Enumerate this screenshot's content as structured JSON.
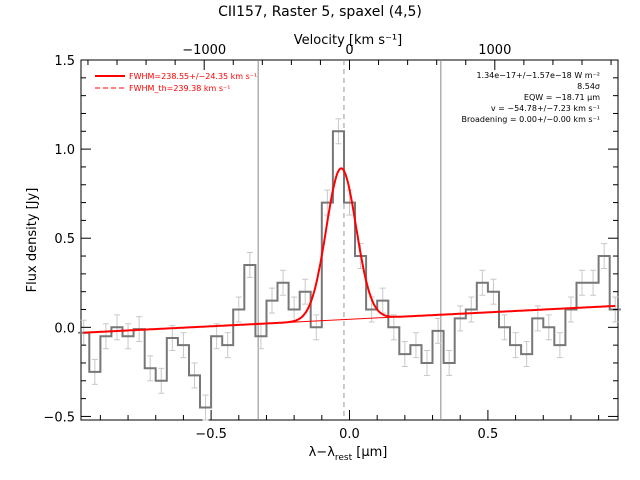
{
  "chart_data": {
    "type": "line",
    "title": "CII157, Raster 5, spaxel (4,5)",
    "xlabel": "λ−λ",
    "xlabel_sub": "rest",
    "xlabel_unit": " [μm]",
    "ylabel": "Flux density [Jy]",
    "top_axis_label": "Velocity [km s⁻¹]",
    "xlim": [
      -0.97,
      0.97
    ],
    "ylim": [
      -0.52,
      1.5
    ],
    "x_ticks": [
      -0.5,
      0.0,
      0.5
    ],
    "x_tick_labels": [
      "−0.5",
      "0.0",
      "0.5"
    ],
    "y_ticks": [
      -0.5,
      0.0,
      0.5,
      1.0,
      1.5
    ],
    "y_tick_labels": [
      "−0.5",
      "0.0",
      "0.5",
      "1.0",
      "1.5"
    ],
    "top_ticks_velocity": [
      -1000,
      0,
      1000
    ],
    "top_tick_labels": [
      "−1000",
      "0",
      "1000"
    ],
    "velocity_per_micron": 1905,
    "vertical_lines": {
      "window": [
        -0.33,
        0.33
      ],
      "line_center": -0.02
    },
    "legend": [
      {
        "label": "FWHM=238.55+/−24.35 km s⁻¹",
        "style": "solid",
        "color": "#ff0000"
      },
      {
        "label": "FWHM_th=239.38 km s⁻¹",
        "style": "dashed",
        "color": "#ff0000"
      }
    ],
    "annotations": [
      "1.34e−17+/−1.57e−18 W m⁻²",
      "8.54σ",
      "EQW = −18.71 μm",
      "v = −54.78+/−7.23 km s⁻¹",
      "Broadening = 0.00+/−0.00 km s⁻¹"
    ],
    "series": [
      {
        "kind": "step",
        "color": "#777777",
        "x": [
          -0.96,
          -0.92,
          -0.88,
          -0.84,
          -0.8,
          -0.76,
          -0.72,
          -0.68,
          -0.64,
          -0.6,
          -0.56,
          -0.52,
          -0.48,
          -0.44,
          -0.4,
          -0.36,
          -0.32,
          -0.28,
          -0.24,
          -0.2,
          -0.16,
          -0.12,
          -0.08,
          -0.04,
          0.0,
          0.04,
          0.08,
          0.12,
          0.16,
          0.2,
          0.24,
          0.28,
          0.32,
          0.36,
          0.4,
          0.44,
          0.48,
          0.52,
          0.56,
          0.6,
          0.64,
          0.68,
          0.72,
          0.76,
          0.8,
          0.84,
          0.88,
          0.92,
          0.96
        ],
        "y": [
          -0.03,
          -0.25,
          -0.05,
          0.0,
          -0.05,
          -0.01,
          -0.23,
          -0.3,
          -0.06,
          -0.1,
          -0.27,
          -0.45,
          -0.05,
          -0.1,
          0.1,
          0.35,
          -0.05,
          0.15,
          0.25,
          0.1,
          0.2,
          0.0,
          0.7,
          1.1,
          0.7,
          0.4,
          0.1,
          0.15,
          0.0,
          -0.15,
          -0.1,
          -0.2,
          -0.02,
          -0.2,
          0.05,
          0.1,
          0.25,
          0.2,
          0.0,
          -0.1,
          -0.15,
          0.05,
          0.0,
          -0.1,
          0.1,
          0.25,
          0.25,
          0.4,
          0.1
        ],
        "err": 0.07
      },
      {
        "name": "FWHM=238.55+/−24.35 km s⁻¹",
        "kind": "model_fit",
        "color": "#ff0000",
        "baseline_x": [
          -0.96,
          0.96
        ],
        "baseline_y": [
          -0.03,
          0.12
        ],
        "gaussian_amplitude": 0.85,
        "gaussian_center": -0.03,
        "gaussian_sigma": 0.054
      }
    ]
  }
}
